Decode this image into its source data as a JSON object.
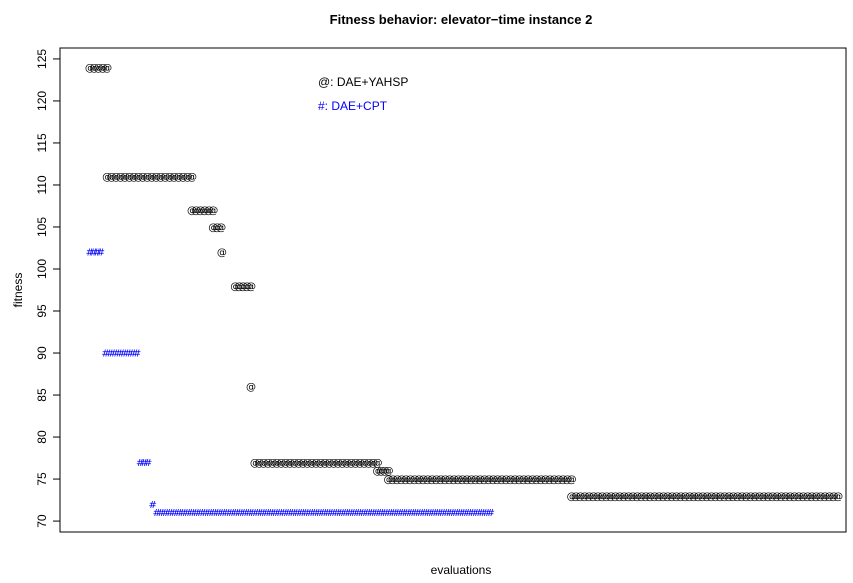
{
  "chart_data": {
    "type": "scatter",
    "title": "Fitness behavior: elevator−time instance 2",
    "xlabel": "evaluations",
    "ylabel": "fitness",
    "y_ticks": [
      70,
      75,
      80,
      85,
      90,
      95,
      100,
      105,
      110,
      115,
      120,
      125
    ],
    "y_tick_labels": [
      "70",
      "75",
      "80",
      "85",
      "90",
      "95",
      "100",
      "105",
      "110",
      "115",
      "120",
      "125"
    ],
    "ylim": [
      68.7,
      126.3
    ],
    "x_axis_ticks_shown": false,
    "legend": {
      "position": "top-center",
      "entries": [
        "@: DAE+YAHSP",
        "#: DAE+CPT"
      ]
    },
    "series": [
      {
        "name": "DAE+YAHSP",
        "symbol": "@",
        "color": "#000000",
        "segments": [
          {
            "x_from": 0.038,
            "x_to": 0.06,
            "y": 124
          },
          {
            "x_from": 0.06,
            "x_to": 0.168,
            "y": 111
          },
          {
            "x_from": 0.168,
            "x_to": 0.195,
            "y": 107
          },
          {
            "x_from": 0.195,
            "x_to": 0.205,
            "y": 105
          },
          {
            "x_from": 0.206,
            "x_to": 0.206,
            "y": 102
          },
          {
            "x_from": 0.223,
            "x_to": 0.243,
            "y": 98
          },
          {
            "x_from": 0.243,
            "x_to": 0.243,
            "y": 86
          },
          {
            "x_from": 0.248,
            "x_to": 0.404,
            "y": 77
          },
          {
            "x_from": 0.404,
            "x_to": 0.418,
            "y": 76
          },
          {
            "x_from": 0.418,
            "x_to": 0.651,
            "y": 75
          },
          {
            "x_from": 0.651,
            "x_to": 0.99,
            "y": 73
          }
        ]
      },
      {
        "name": "DAE+CPT",
        "symbol": "#",
        "color": "#0000ff",
        "segments": [
          {
            "x_from": 0.038,
            "x_to": 0.052,
            "y": 102
          },
          {
            "x_from": 0.058,
            "x_to": 0.098,
            "y": 90
          },
          {
            "x_from": 0.102,
            "x_to": 0.112,
            "y": 77
          },
          {
            "x_from": 0.118,
            "x_to": 0.118,
            "y": 72
          },
          {
            "x_from": 0.123,
            "x_to": 0.548,
            "y": 71
          }
        ]
      }
    ]
  }
}
